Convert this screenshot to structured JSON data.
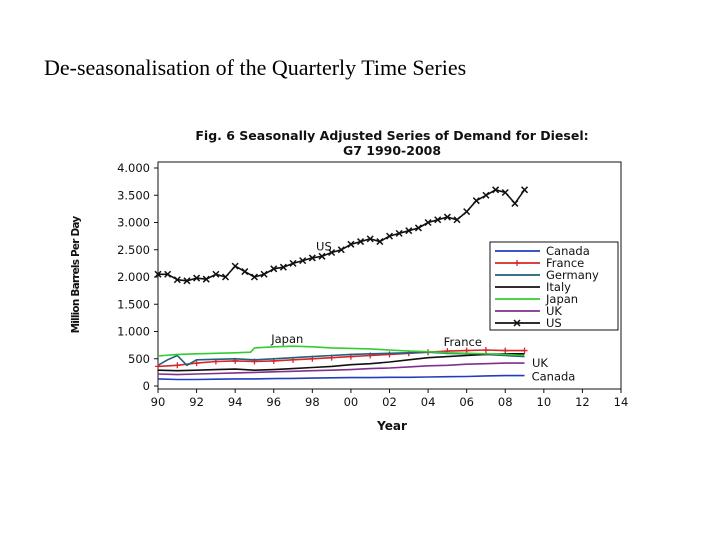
{
  "slide": {
    "title": "De-seasonalisation of the Quarterly Time Series"
  },
  "chart_data": {
    "type": "line",
    "title_line1": "Fig. 6 Seasonally Adjusted Series of Demand for Diesel:",
    "title_line2": "G7 1990-2008",
    "xlabel": "Year",
    "ylabel": "Million Barrels Per Day",
    "xlim": [
      1990,
      2014
    ],
    "ylim": [
      0,
      4000
    ],
    "x_ticks": [
      1990,
      1992,
      1994,
      1996,
      1998,
      2000,
      2002,
      2004,
      2006,
      2008,
      2010,
      2012,
      2014
    ],
    "x_tick_labels": [
      "90",
      "92",
      "94",
      "96",
      "98",
      "00",
      "02",
      "04",
      "06",
      "08",
      "10",
      "12",
      "14"
    ],
    "y_ticks": [
      0,
      500,
      1000,
      1500,
      2000,
      2500,
      3000,
      3500,
      4000
    ],
    "y_tick_labels": [
      "0",
      "500",
      "1.000",
      "1.500",
      "2.000",
      "2.500",
      "3.000",
      "3.500",
      "4.000"
    ],
    "legend_position": "right",
    "annotations": [
      {
        "text": "US",
        "x": 1998.6,
        "y": 2560
      },
      {
        "text": "Japan",
        "x": 1996.7,
        "y": 860
      },
      {
        "text": "France",
        "x": 2005.8,
        "y": 810
      },
      {
        "text": "UK",
        "x": 2009.8,
        "y": 420
      },
      {
        "text": "Canada",
        "x": 2010.5,
        "y": 170
      }
    ],
    "series": [
      {
        "name": "Canada",
        "color": "#1f3fbf",
        "marker": "none",
        "x": [
          1990,
          1991,
          1992,
          1993,
          1994,
          1995,
          1996,
          1997,
          1998,
          1999,
          2000,
          2001,
          2002,
          2003,
          2004,
          2005,
          2006,
          2007,
          2008,
          2009
        ],
        "y": [
          130,
          120,
          120,
          125,
          130,
          130,
          135,
          140,
          145,
          150,
          155,
          155,
          160,
          160,
          165,
          170,
          175,
          185,
          190,
          190
        ]
      },
      {
        "name": "France",
        "color": "#d62728",
        "marker": "plus",
        "x": [
          1990,
          1991,
          1992,
          1993,
          1994,
          1995,
          1996,
          1997,
          1998,
          1999,
          2000,
          2001,
          2002,
          2003,
          2004,
          2005,
          2006,
          2007,
          2008,
          2009
        ],
        "y": [
          360,
          380,
          420,
          450,
          460,
          450,
          460,
          480,
          500,
          520,
          540,
          560,
          580,
          600,
          620,
          640,
          650,
          660,
          650,
          650
        ]
      },
      {
        "name": "Germany",
        "color": "#1f5f7f",
        "marker": "none",
        "x": [
          1990,
          1990.5,
          1991,
          1991.5,
          1992,
          1993,
          1994,
          1995,
          1996,
          1997,
          1998,
          1999,
          2000,
          2001,
          2002,
          2003,
          2004,
          2005,
          2006,
          2007,
          2008,
          2009
        ],
        "y": [
          380,
          480,
          560,
          380,
          480,
          490,
          500,
          480,
          500,
          520,
          540,
          560,
          580,
          590,
          600,
          610,
          620,
          600,
          590,
          580,
          560,
          540
        ]
      },
      {
        "name": "Italy",
        "color": "#111111",
        "marker": "none",
        "x": [
          1990,
          1991,
          1992,
          1993,
          1994,
          1995,
          1996,
          1997,
          1998,
          1999,
          2000,
          2001,
          2002,
          2003,
          2004,
          2005,
          2006,
          2007,
          2008,
          2009
        ],
        "y": [
          290,
          280,
          290,
          300,
          310,
          290,
          300,
          320,
          340,
          360,
          390,
          410,
          440,
          480,
          520,
          540,
          560,
          580,
          590,
          590
        ]
      },
      {
        "name": "Japan",
        "color": "#33cc33",
        "marker": "none",
        "x": [
          1990,
          1991,
          1992,
          1993,
          1994,
          1994.8,
          1995,
          1996,
          1997,
          1998,
          1999,
          2000,
          2001,
          2002,
          2003,
          2004,
          2005,
          2006,
          2007,
          2008,
          2009
        ],
        "y": [
          550,
          580,
          590,
          600,
          610,
          620,
          700,
          720,
          730,
          720,
          700,
          690,
          680,
          660,
          640,
          630,
          610,
          600,
          590,
          580,
          560
        ]
      },
      {
        "name": "UK",
        "color": "#7f2f8f",
        "marker": "none",
        "x": [
          1990,
          1991,
          1992,
          1993,
          1994,
          1995,
          1996,
          1997,
          1998,
          1999,
          2000,
          2001,
          2002,
          2003,
          2004,
          2005,
          2006,
          2007,
          2008,
          2009
        ],
        "y": [
          220,
          210,
          220,
          230,
          240,
          250,
          260,
          270,
          280,
          290,
          300,
          320,
          330,
          350,
          370,
          380,
          400,
          410,
          420,
          420
        ]
      },
      {
        "name": "US",
        "color": "#111111",
        "marker": "x",
        "x": [
          1990,
          1990.5,
          1991,
          1991.5,
          1992,
          1992.5,
          1993,
          1993.5,
          1994,
          1994.5,
          1995,
          1995.5,
          1996,
          1996.5,
          1997,
          1997.5,
          1998,
          1998.5,
          1999,
          1999.5,
          2000,
          2000.5,
          2001,
          2001.5,
          2002,
          2002.5,
          2003,
          2003.5,
          2004,
          2004.5,
          2005,
          2005.5,
          2006,
          2006.5,
          2007,
          2007.5,
          2008,
          2008.5,
          2009
        ],
        "y": [
          2050,
          2050,
          1950,
          1930,
          1980,
          1960,
          2050,
          2000,
          2200,
          2100,
          2000,
          2050,
          2150,
          2180,
          2250,
          2300,
          2350,
          2380,
          2450,
          2500,
          2600,
          2650,
          2700,
          2650,
          2750,
          2800,
          2850,
          2900,
          3000,
          3050,
          3100,
          3050,
          3200,
          3400,
          3500,
          3600,
          3550,
          3350,
          3600
        ]
      }
    ]
  }
}
